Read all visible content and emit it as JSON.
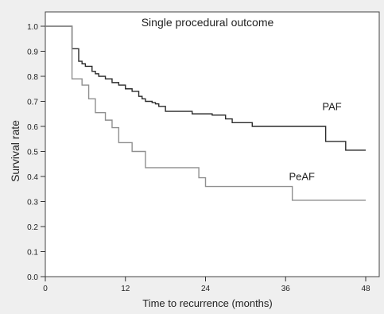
{
  "chart_data": {
    "type": "line",
    "title": "Single procedural outcome",
    "xlabel": "Time to recurrence (months)",
    "ylabel": "Survival rate",
    "xlim": [
      0,
      48
    ],
    "ylim": [
      0,
      1.0
    ],
    "x_ticks": [
      0,
      12,
      24,
      36,
      48
    ],
    "y_ticks": [
      0.0,
      0.1,
      0.2,
      0.3,
      0.4,
      0.5,
      0.6,
      0.7,
      0.8,
      0.9,
      1.0
    ],
    "x_tick_labels": [
      "0",
      "12",
      "24",
      "36",
      "48"
    ],
    "y_tick_labels": [
      "0.0",
      "0.1",
      "0.2",
      "0.3",
      "0.4",
      "0.5",
      "0.6",
      "0.7",
      "0.8",
      "0.9",
      "1.0"
    ],
    "grid": false,
    "step": true,
    "series": [
      {
        "name": "PAF",
        "color": "#2b2b2b",
        "label_at": [
          41.5,
          0.665
        ],
        "x": [
          0,
          4,
          5,
          5.5,
          6,
          7,
          7.5,
          8,
          9,
          10,
          11,
          12,
          13,
          14,
          14.5,
          15,
          16,
          16.5,
          17,
          18,
          20,
          22,
          25,
          27,
          28,
          31,
          34,
          38,
          42,
          45,
          48
        ],
        "y": [
          1.0,
          0.91,
          0.86,
          0.85,
          0.84,
          0.82,
          0.81,
          0.8,
          0.79,
          0.775,
          0.765,
          0.75,
          0.74,
          0.72,
          0.71,
          0.7,
          0.695,
          0.69,
          0.68,
          0.66,
          0.66,
          0.65,
          0.645,
          0.63,
          0.615,
          0.6,
          0.6,
          0.6,
          0.54,
          0.505,
          0.505
        ]
      },
      {
        "name": "PeAF",
        "color": "#8f8f8f",
        "label_at": [
          36.5,
          0.385
        ],
        "x": [
          0,
          4,
          5.5,
          6.5,
          7.5,
          9,
          10,
          11,
          12,
          13,
          15,
          18,
          20,
          23,
          24,
          26,
          31,
          37,
          48
        ],
        "y": [
          1.0,
          0.79,
          0.765,
          0.71,
          0.655,
          0.625,
          0.595,
          0.535,
          0.535,
          0.5,
          0.435,
          0.435,
          0.435,
          0.395,
          0.36,
          0.36,
          0.36,
          0.305,
          0.305
        ]
      }
    ]
  }
}
